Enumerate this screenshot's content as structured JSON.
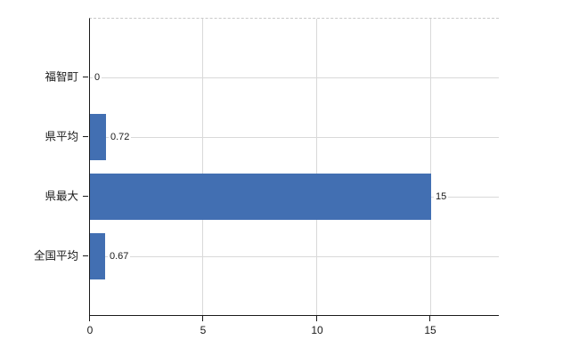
{
  "chart_data": {
    "type": "bar",
    "orientation": "horizontal",
    "title": "",
    "xlabel": "",
    "ylabel": "",
    "categories": [
      "福智町",
      "県平均",
      "県最大",
      "全国平均"
    ],
    "values": [
      0,
      0.72,
      15,
      0.67
    ],
    "value_labels": [
      "0",
      "0.72",
      "15",
      "0.67"
    ],
    "xticks": [
      0,
      5,
      10,
      15
    ],
    "xtick_labels": [
      "0",
      "5",
      "10",
      "15"
    ],
    "xlim": [
      0,
      18
    ],
    "grid": "on",
    "legend": "none",
    "bar_color": "#426fb2",
    "gridline_color": "#d9d9d9",
    "axis_color": "#1a1a1a",
    "background_color": "#ffffff"
  }
}
